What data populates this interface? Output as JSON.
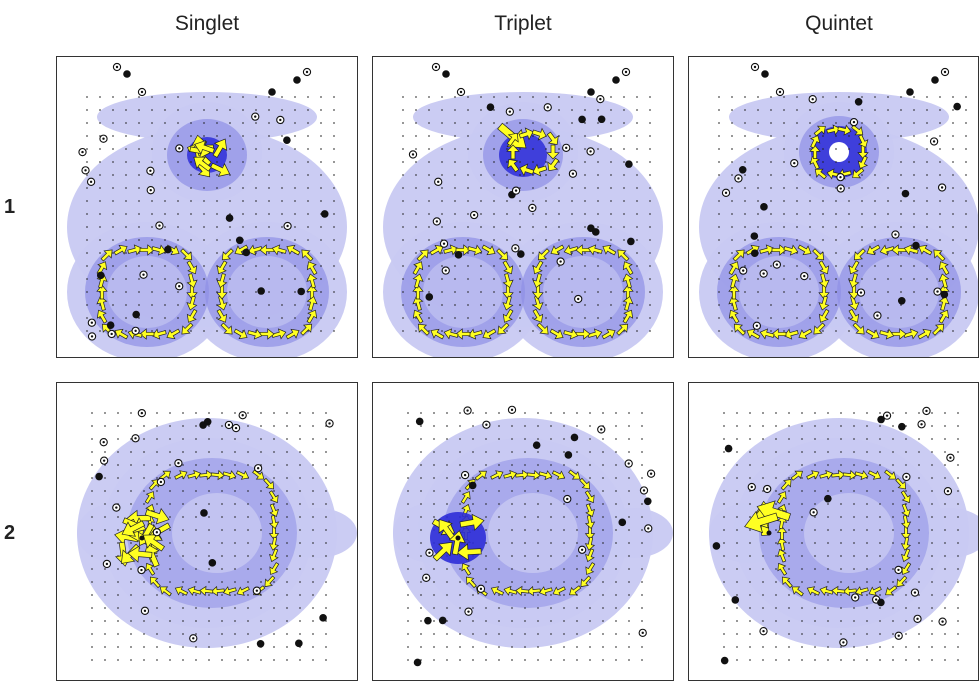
{
  "figure": {
    "columns": [
      "Singlet",
      "Triplet",
      "Quintet"
    ],
    "rows": [
      "1",
      "2"
    ]
  },
  "colors": {
    "density_light": "#c8c9f2",
    "density_mid": "#8e90e6",
    "density_dark": "#2e2ed8",
    "arrows": "#ffff22",
    "arrow_edge": "#222222",
    "markers": "#111111"
  }
}
